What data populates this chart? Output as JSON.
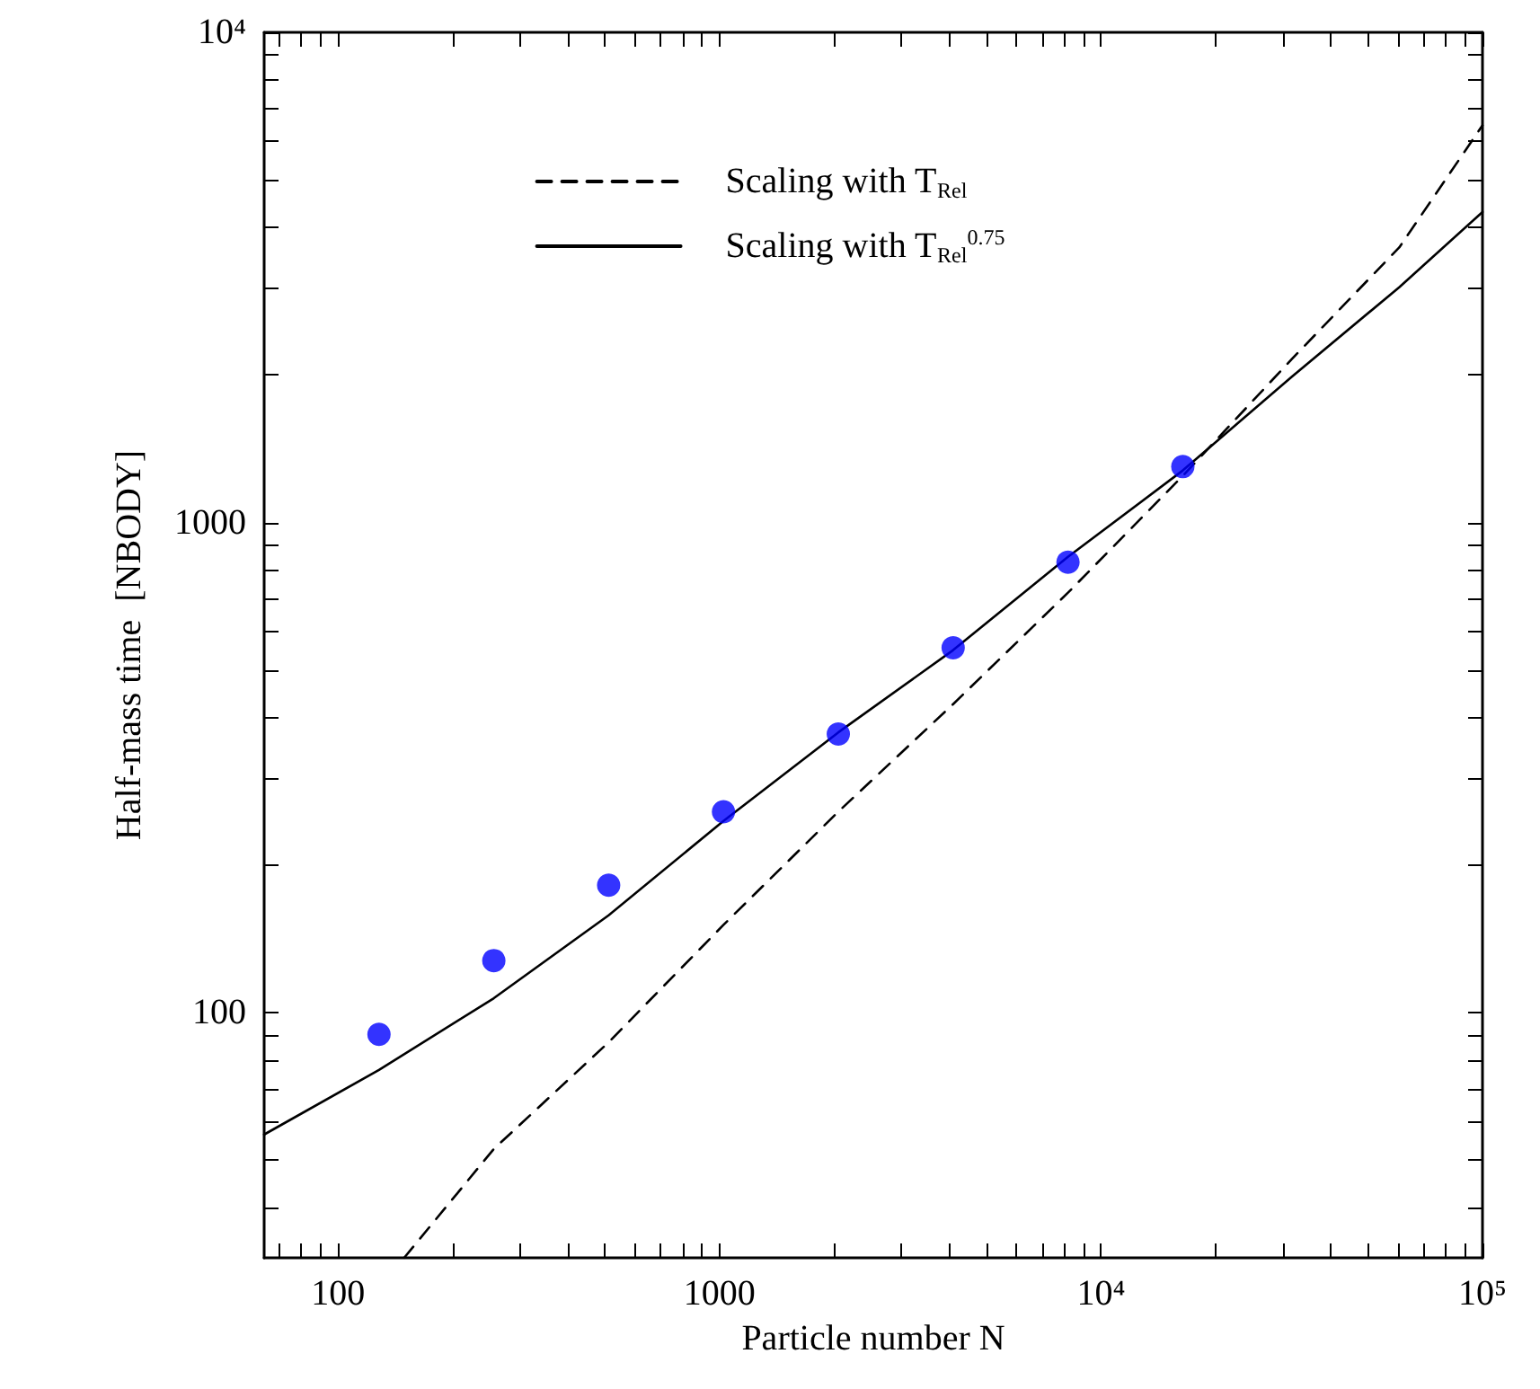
{
  "chart_data": {
    "type": "line",
    "xlabel": "Particle number N",
    "ylabel": "Half-mass time  [NBODY]",
    "log": "xy",
    "legend": "top",
    "grid": false,
    "xlim": [
      64,
      100000
    ],
    "ylim": [
      31.6,
      10000
    ],
    "xticks": [
      {
        "value": 70,
        "label": null
      },
      {
        "value": 80,
        "label": null
      },
      {
        "value": 90,
        "label": null
      },
      100,
      {
        "value": 200,
        "label": null
      },
      {
        "value": 300,
        "label": null
      },
      {
        "value": 400,
        "label": null
      },
      {
        "value": 500,
        "label": null
      },
      {
        "value": 600,
        "label": null
      },
      {
        "value": 700,
        "label": null
      },
      {
        "value": 800,
        "label": null
      },
      {
        "value": 900,
        "label": null
      },
      1000,
      {
        "value": 2000,
        "label": null
      },
      {
        "value": 3000,
        "label": null
      },
      {
        "value": 4000,
        "label": null
      },
      {
        "value": 5000,
        "label": null
      },
      {
        "value": 6000,
        "label": null
      },
      {
        "value": 7000,
        "label": null
      },
      {
        "value": 8000,
        "label": null
      },
      {
        "value": 9000,
        "label": null
      },
      {
        "value": 10000,
        "label": "10⁴"
      },
      {
        "value": 20000,
        "label": null
      },
      {
        "value": 30000,
        "label": null
      },
      {
        "value": 40000,
        "label": null
      },
      {
        "value": 50000,
        "label": null
      },
      {
        "value": 60000,
        "label": null
      },
      {
        "value": 70000,
        "label": null
      },
      {
        "value": 80000,
        "label": null
      },
      {
        "value": 90000,
        "label": null
      },
      {
        "value": 100000,
        "label": "10⁵"
      }
    ],
    "yticks": [
      {
        "value": 40,
        "label": null
      },
      {
        "value": 50,
        "label": null
      },
      {
        "value": 60,
        "label": null
      },
      {
        "value": 70,
        "label": null
      },
      {
        "value": 80,
        "label": null
      },
      {
        "value": 90,
        "label": null
      },
      100,
      {
        "value": 200,
        "label": null
      },
      {
        "value": 300,
        "label": null
      },
      {
        "value": 400,
        "label": null
      },
      {
        "value": 500,
        "label": null
      },
      {
        "value": 600,
        "label": null
      },
      {
        "value": 700,
        "label": null
      },
      {
        "value": 800,
        "label": null
      },
      {
        "value": 900,
        "label": null
      },
      1000,
      {
        "value": 2000,
        "label": null
      },
      {
        "value": 3000,
        "label": null
      },
      {
        "value": 4000,
        "label": null
      },
      {
        "value": 5000,
        "label": null
      },
      {
        "value": 6000,
        "label": null
      },
      {
        "value": 7000,
        "label": null
      },
      {
        "value": 8000,
        "label": null
      },
      {
        "value": 9000,
        "label": null
      },
      {
        "value": 10000,
        "label": "10⁴"
      }
    ],
    "series": [
      {
        "name": "Scaling with T$_{Rel}$",
        "color": "#000000",
        "line_style": "dashed",
        "marker": "none",
        "x": [
          149,
          256,
          512,
          1024,
          2048,
          4096,
          8192,
          16384,
          31600,
          60500,
          100000
        ],
        "values": [
          31.6,
          52.7,
          87,
          151,
          257,
          426,
          719,
          1245,
          2153,
          3640,
          6460
        ]
      },
      {
        "name": "Scaling with T$_{Rel}$$^{0.75}$",
        "color": "#000000",
        "line_style": "solid",
        "marker": "none",
        "x": [
          64,
          128,
          256,
          512,
          1024,
          2048,
          4096,
          8192,
          16384,
          31600,
          60500,
          100000
        ],
        "values": [
          56.4,
          76.4,
          107,
          158,
          246,
          373,
          549,
          851,
          1277,
          1982,
          3020,
          4300
        ]
      },
      {
        "type": "scatter",
        "color": "#0000ff",
        "marker": "circle",
        "x": [
          128,
          256,
          512,
          1024,
          2048,
          4096,
          8192,
          16384
        ],
        "values": [
          90.3,
          127.7,
          182,
          257,
          370,
          555,
          830,
          1300
        ]
      }
    ]
  }
}
